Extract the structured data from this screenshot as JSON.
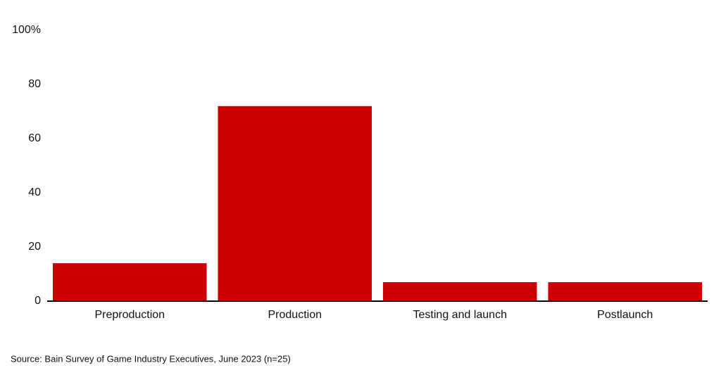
{
  "chart_data": {
    "type": "bar",
    "categories": [
      "Preproduction",
      "Production",
      "Testing and launch",
      "Postlaunch"
    ],
    "values": [
      14,
      72,
      7,
      7
    ],
    "color": "#cc0000",
    "ylim": [
      0,
      100
    ],
    "yticks": [
      0,
      20,
      40,
      60,
      80,
      {
        "value": 100,
        "label": "100%"
      }
    ],
    "grid": false,
    "source": "Source: Bain Survey of Game Industry Executives, June 2023 (n=25)"
  }
}
